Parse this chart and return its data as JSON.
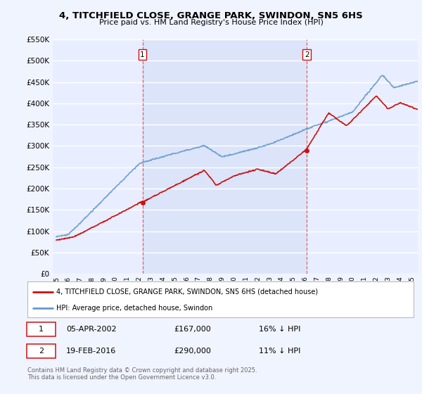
{
  "title": "4, TITCHFIELD CLOSE, GRANGE PARK, SWINDON, SN5 6HS",
  "subtitle": "Price paid vs. HM Land Registry's House Price Index (HPI)",
  "ylim": [
    0,
    550000
  ],
  "yticks": [
    0,
    50000,
    100000,
    150000,
    200000,
    250000,
    300000,
    350000,
    400000,
    450000,
    500000,
    550000
  ],
  "ytick_labels": [
    "£0",
    "£50K",
    "£100K",
    "£150K",
    "£200K",
    "£250K",
    "£300K",
    "£350K",
    "£400K",
    "£450K",
    "£500K",
    "£550K"
  ],
  "background_color": "#f0f4ff",
  "plot_bg_color": "#e8eeff",
  "shade_color": "#d0dcf5",
  "grid_color": "#ffffff",
  "line_color_hpi": "#6699cc",
  "line_color_price": "#cc1111",
  "marker1_x": 2002.27,
  "marker1_y": 167000,
  "marker2_x": 2016.13,
  "marker2_y": 290000,
  "marker_date1": "05-APR-2002",
  "marker_price1": "£167,000",
  "marker_hpi1": "16% ↓ HPI",
  "marker_date2": "19-FEB-2016",
  "marker_price2": "£290,000",
  "marker_hpi2": "11% ↓ HPI",
  "legend_label1": "4, TITCHFIELD CLOSE, GRANGE PARK, SWINDON, SN5 6HS (detached house)",
  "legend_label2": "HPI: Average price, detached house, Swindon",
  "footer": "Contains HM Land Registry data © Crown copyright and database right 2025.\nThis data is licensed under the Open Government Licence v3.0.",
  "xmin": 1995,
  "xmax": 2025.5
}
